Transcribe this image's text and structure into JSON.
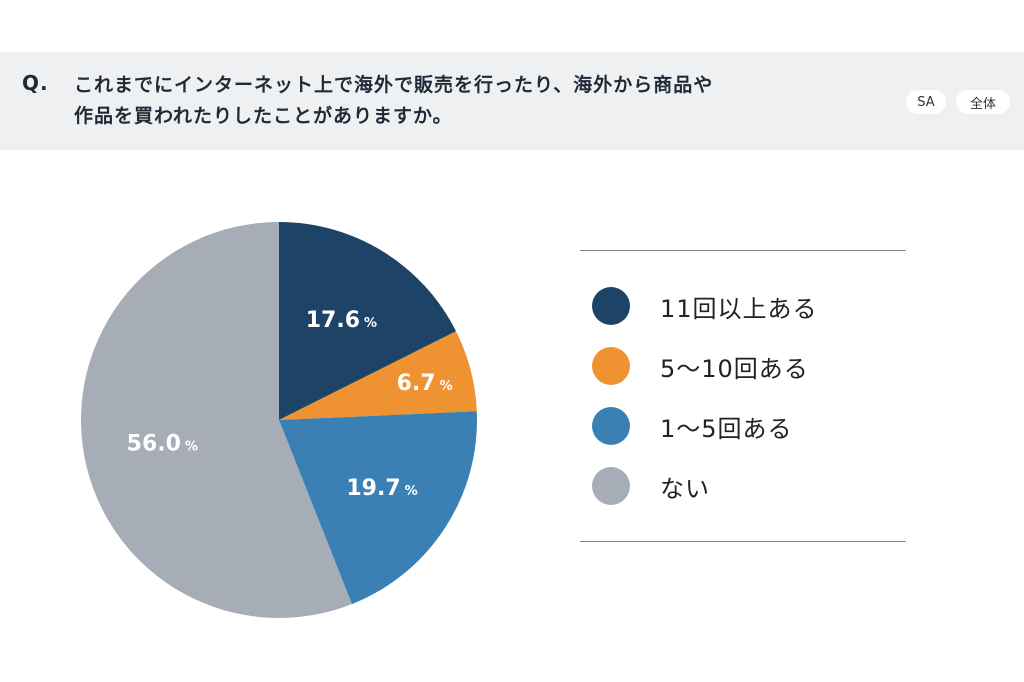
{
  "question": {
    "mark": "Q.",
    "line1": "これまでにインターネット上で海外で販売を行ったり、海外から商品や",
    "line2": "作品を買われたりしたことがありますか。",
    "tag_sa": "SA",
    "tag_all": "全体"
  },
  "chart_data": {
    "type": "pie",
    "title": "",
    "unit": "%",
    "start_angle_deg": 0,
    "direction": "clockwise",
    "slices": [
      {
        "label": "11回以上ある",
        "value": 17.6,
        "color": "#1d4466"
      },
      {
        "label": "5～10回ある",
        "value": 6.7,
        "color": "#ee9232"
      },
      {
        "label": "1～5回ある",
        "value": 19.7,
        "color": "#3a80b5"
      },
      {
        "label": "ない",
        "value": 56.0,
        "color": "#a7adb6"
      }
    ],
    "legend_position": "right"
  }
}
